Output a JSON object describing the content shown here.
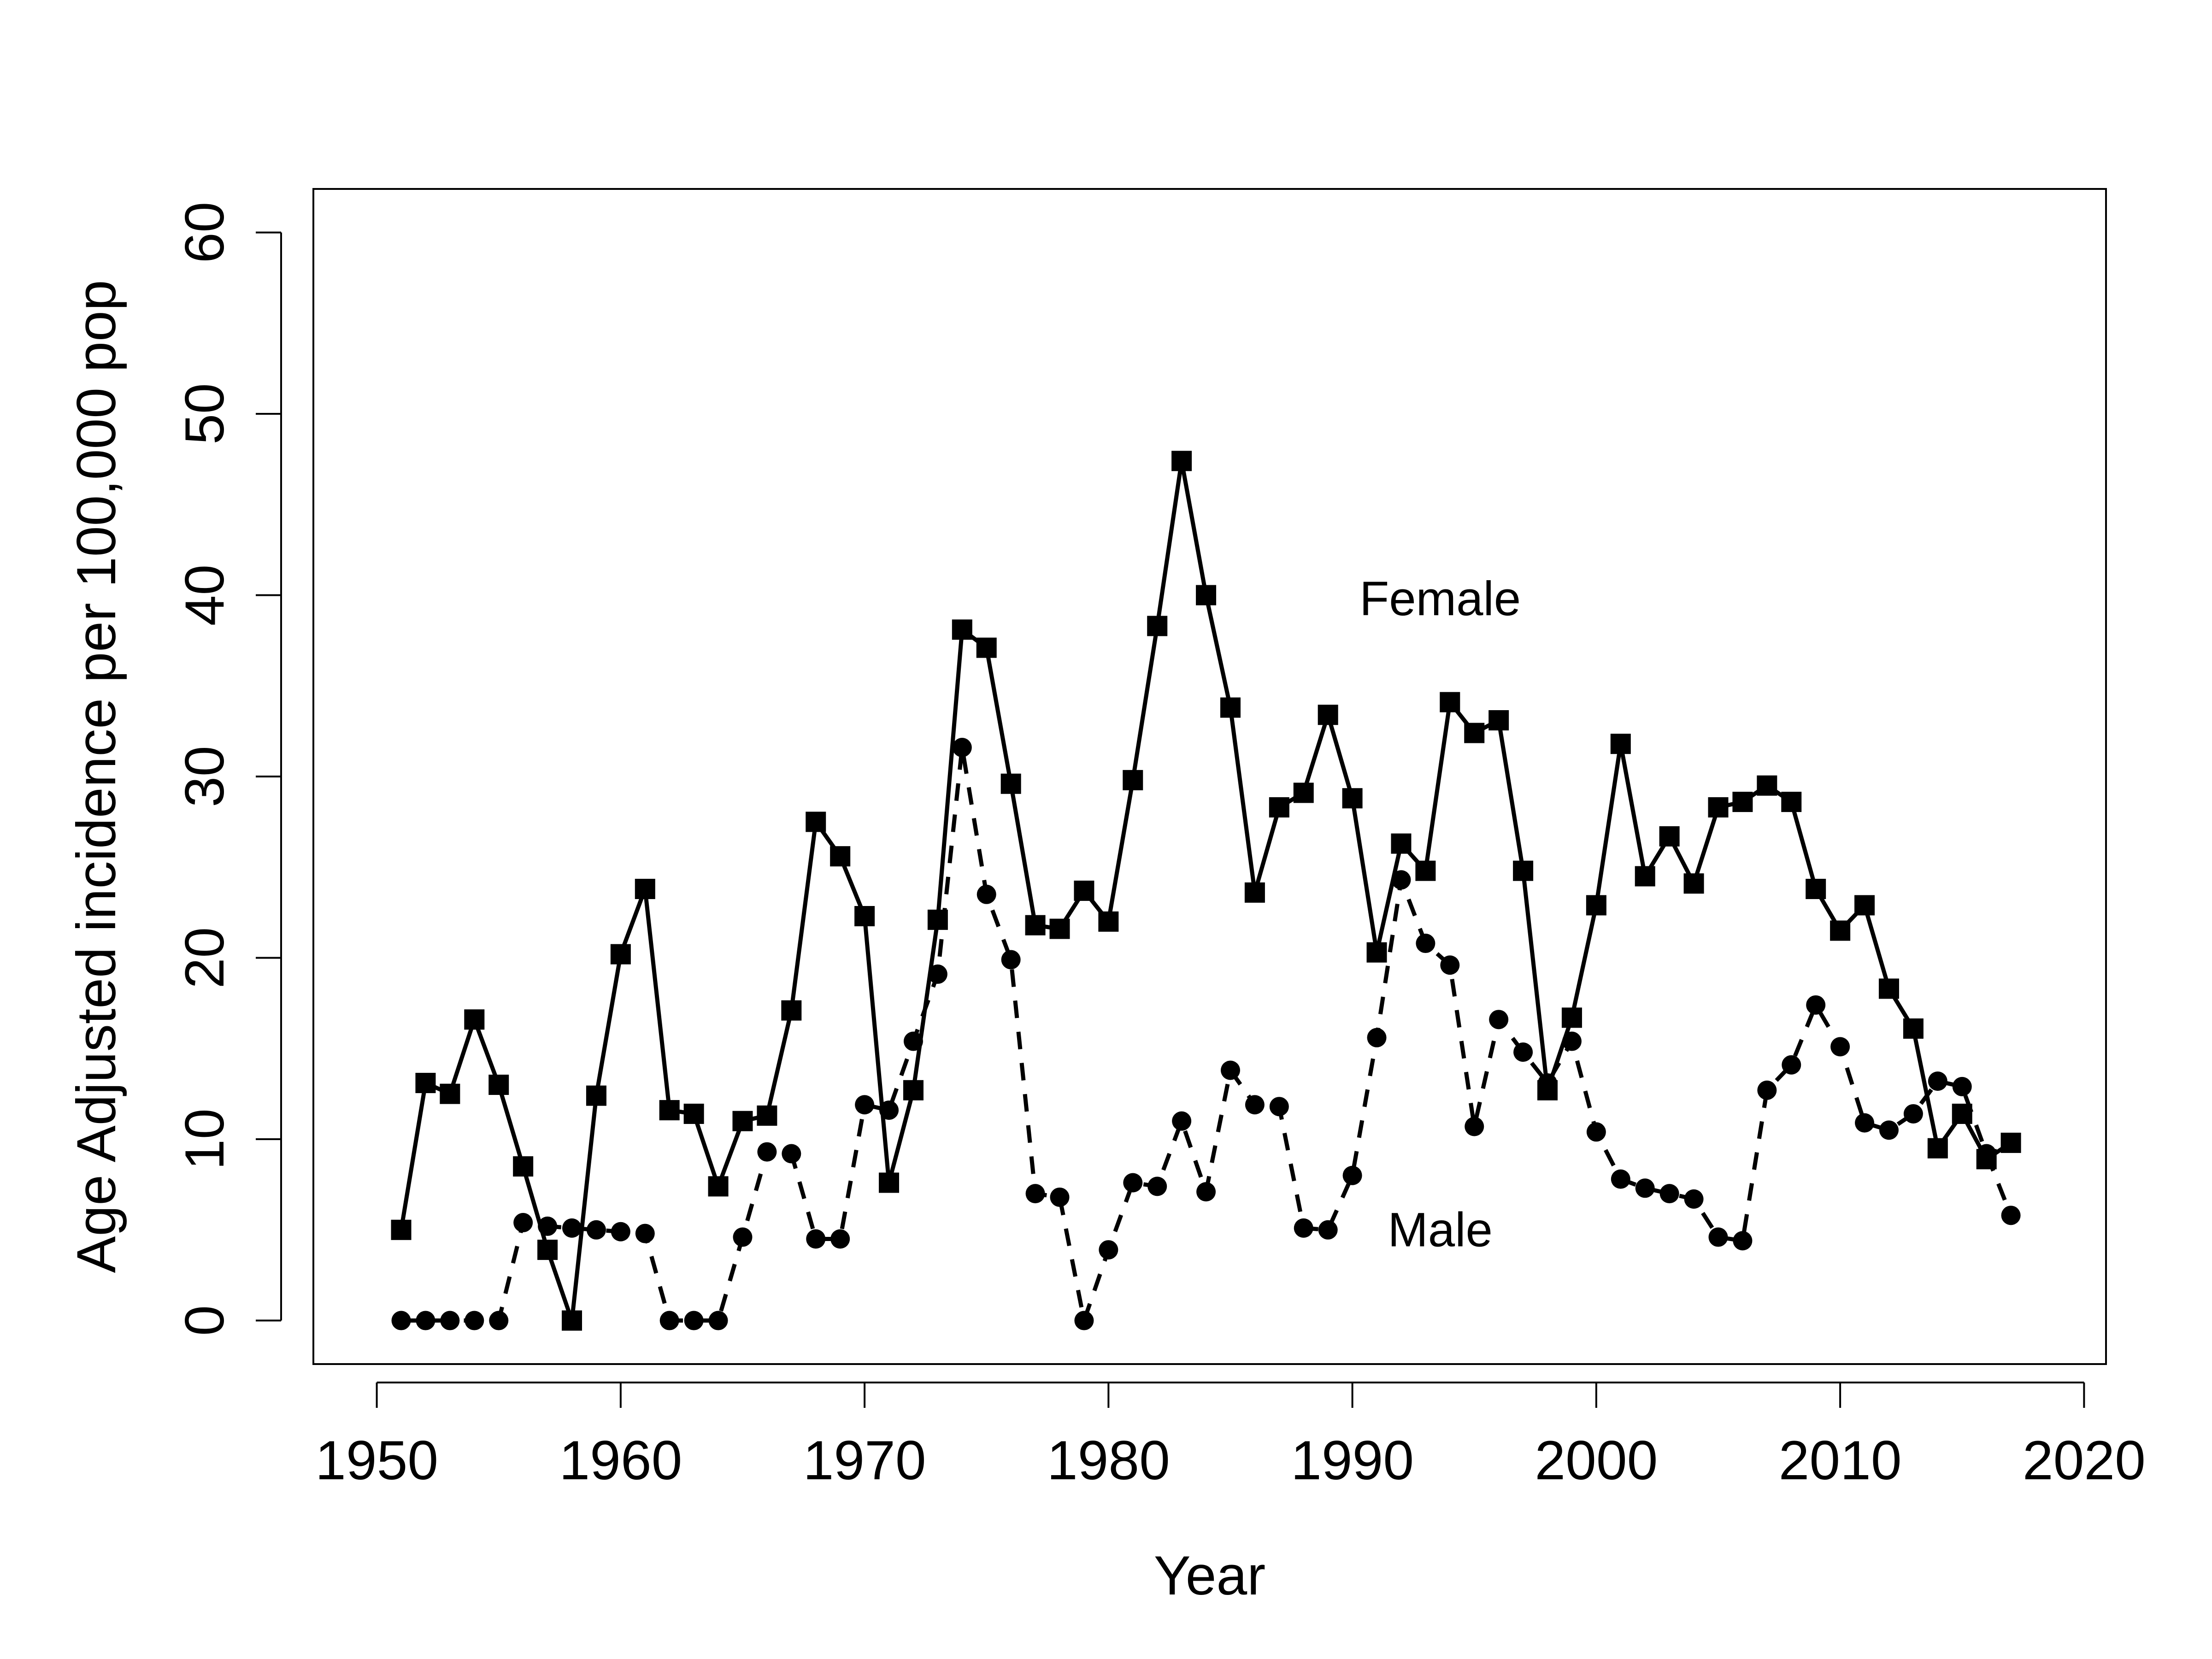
{
  "chart_data": {
    "type": "line",
    "title": "",
    "xlabel": "Year",
    "ylabel": "Age Adjusted incidence per 100,000 pop",
    "xlim": [
      1947.4,
      2020.9
    ],
    "ylim": [
      -2.4,
      62.4
    ],
    "xticks": [
      1950,
      1960,
      1970,
      1980,
      1990,
      2000,
      2010,
      2020
    ],
    "yticks": [
      0,
      10,
      20,
      30,
      40,
      50,
      60
    ],
    "grid": false,
    "legend": "none",
    "x": [
      1951,
      1952,
      1953,
      1954,
      1955,
      1956,
      1957,
      1958,
      1959,
      1960,
      1961,
      1962,
      1963,
      1964,
      1965,
      1966,
      1967,
      1968,
      1969,
      1970,
      1971,
      1972,
      1973,
      1974,
      1975,
      1976,
      1977,
      1978,
      1979,
      1980,
      1981,
      1982,
      1983,
      1984,
      1985,
      1986,
      1987,
      1988,
      1989,
      1990,
      1991,
      1992,
      1993,
      1994,
      1995,
      1996,
      1997,
      1998,
      1999,
      2000,
      2001,
      2002,
      2003,
      2004,
      2005,
      2006,
      2007,
      2008,
      2009,
      2010,
      2011,
      2012,
      2013,
      2014,
      2015,
      2016,
      2017
    ],
    "series": [
      {
        "name": "Female",
        "line": "solid",
        "marker": "square",
        "values": [
          5.0,
          13.1,
          12.5,
          16.6,
          13.0,
          8.5,
          3.9,
          0.0,
          12.4,
          20.2,
          23.8,
          11.6,
          11.4,
          7.4,
          11.0,
          11.3,
          17.1,
          27.5,
          25.6,
          22.3,
          7.6,
          12.7,
          22.1,
          38.1,
          37.1,
          29.6,
          21.8,
          21.6,
          23.7,
          22.0,
          29.8,
          38.3,
          47.4,
          40.0,
          33.8,
          23.6,
          28.3,
          29.1,
          33.4,
          28.8,
          20.3,
          26.3,
          24.8,
          34.1,
          32.4,
          33.1,
          24.8,
          12.7,
          16.7,
          22.9,
          31.8,
          24.5,
          26.7,
          24.1,
          28.3,
          28.6,
          29.5,
          28.6,
          23.8,
          21.5,
          22.9,
          18.3,
          16.1,
          9.5,
          11.4,
          8.9,
          9.8
        ]
      },
      {
        "name": "Male",
        "line": "dashed",
        "marker": "circle",
        "values": [
          0.0,
          0.0,
          0.0,
          0.0,
          0.0,
          5.4,
          5.2,
          5.1,
          5.0,
          4.9,
          4.8,
          0.0,
          0.0,
          0.0,
          4.6,
          9.3,
          9.2,
          4.5,
          4.5,
          11.9,
          11.6,
          15.4,
          19.1,
          31.6,
          23.5,
          19.9,
          7.0,
          6.8,
          0.0,
          3.9,
          7.6,
          7.4,
          11.0,
          7.1,
          13.8,
          11.9,
          11.8,
          5.1,
          5.0,
          8.0,
          15.6,
          24.3,
          20.8,
          19.6,
          10.7,
          16.6,
          14.8,
          13.1,
          15.4,
          10.4,
          7.8,
          7.3,
          7.0,
          6.7,
          4.6,
          4.4,
          12.7,
          14.1,
          17.4,
          15.1,
          10.9,
          10.5,
          11.4,
          13.2,
          12.9,
          9.2,
          5.8
        ]
      }
    ],
    "annotations": [
      {
        "text": "Female",
        "x": 1993.6,
        "y": 39.6
      },
      {
        "text": "Male",
        "x": 1993.6,
        "y": 4.8
      }
    ]
  }
}
